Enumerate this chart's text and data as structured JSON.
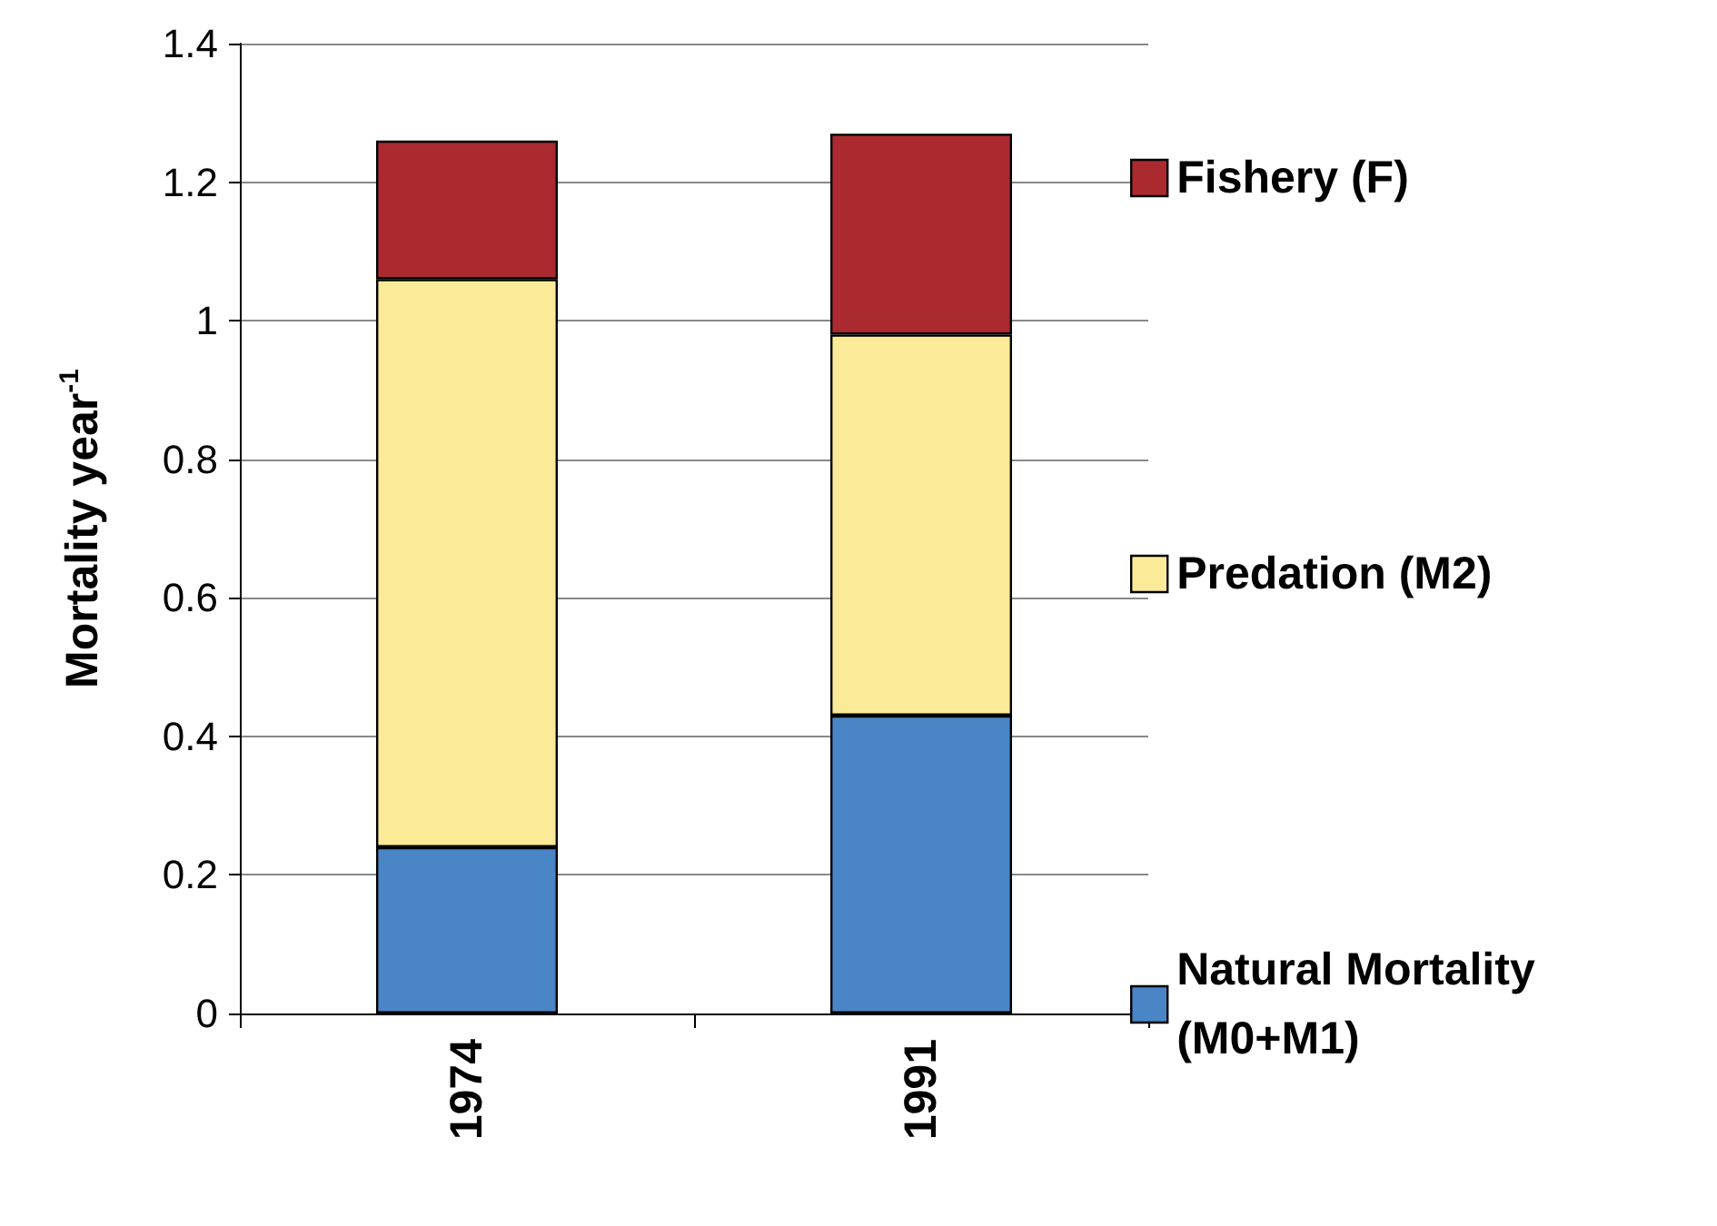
{
  "chart_data": {
    "type": "bar",
    "stacked": true,
    "ylabel": "Mortality year$^{-1}$",
    "categories": [
      "1974",
      "1991"
    ],
    "series": [
      {
        "name": "Natural Mortality (M0+M1)",
        "color": "#4a86c6",
        "values": [
          0.24,
          0.43
        ]
      },
      {
        "name": "Predation (M2)",
        "color": "#fbeb98",
        "values": [
          0.82,
          0.55
        ]
      },
      {
        "name": "Fishery (F)",
        "color": "#aa2a30",
        "values": [
          0.2,
          0.29
        ]
      }
    ],
    "ylim": [
      0,
      1.4
    ],
    "yticks": [
      0,
      0.2,
      0.4,
      0.6,
      0.8,
      1,
      1.2,
      1.4
    ],
    "grid": "y",
    "legend": "right"
  }
}
